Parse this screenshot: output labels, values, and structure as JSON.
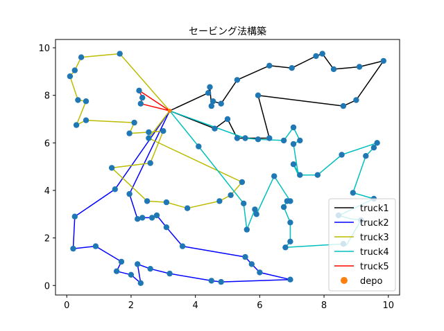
{
  "chart_data": {
    "type": "line",
    "title": "セービング法構築",
    "xlabel": "",
    "ylabel": "",
    "xlim": [
      -0.35,
      10.35
    ],
    "ylim": [
      -0.4,
      10.35
    ],
    "xticks": [
      0,
      2,
      4,
      6,
      8,
      10
    ],
    "yticks": [
      0,
      2,
      4,
      6,
      8,
      10
    ],
    "grid": false,
    "legend_position": "lower-right",
    "depot": [
      3.2,
      7.35
    ],
    "series": [
      {
        "name": "truck1",
        "color": "#000000",
        "points": [
          [
            3.2,
            7.35
          ],
          [
            4.4,
            8.1
          ],
          [
            4.45,
            8.35
          ],
          [
            4.5,
            7.55
          ],
          [
            4.55,
            7.75
          ],
          [
            4.8,
            7.65
          ],
          [
            5.3,
            8.65
          ],
          [
            6.3,
            9.25
          ],
          [
            7.0,
            9.15
          ],
          [
            7.75,
            9.65
          ],
          [
            7.95,
            9.75
          ],
          [
            8.3,
            9.1
          ],
          [
            9.1,
            9.2
          ],
          [
            9.85,
            9.45
          ],
          [
            9.0,
            7.8
          ],
          [
            8.6,
            7.55
          ],
          [
            5.95,
            8.0
          ],
          [
            6.3,
            6.2
          ],
          [
            5.3,
            6.2
          ],
          [
            5.0,
            7.0
          ],
          [
            4.6,
            6.6
          ],
          [
            3.2,
            7.35
          ]
        ]
      },
      {
        "name": "truck2",
        "color": "#0000ff",
        "points": [
          [
            3.2,
            7.35
          ],
          [
            1.5,
            4.05
          ],
          [
            0.25,
            2.9
          ],
          [
            0.2,
            1.55
          ],
          [
            0.9,
            1.65
          ],
          [
            1.7,
            1.0
          ],
          [
            1.55,
            0.6
          ],
          [
            2.0,
            0.45
          ],
          [
            2.3,
            0.1
          ],
          [
            2.2,
            0.9
          ],
          [
            2.6,
            0.7
          ],
          [
            3.2,
            0.5
          ],
          [
            4.5,
            0.2
          ],
          [
            4.8,
            0.15
          ],
          [
            6.95,
            0.25
          ],
          [
            6.0,
            0.55
          ],
          [
            5.75,
            0.9
          ],
          [
            5.55,
            1.2
          ],
          [
            3.6,
            1.65
          ],
          [
            3.1,
            2.45
          ],
          [
            2.8,
            2.95
          ],
          [
            2.65,
            2.85
          ],
          [
            2.35,
            2.85
          ],
          [
            2.2,
            2.8
          ],
          [
            1.95,
            3.85
          ],
          [
            3.2,
            7.35
          ]
        ]
      },
      {
        "name": "truck3",
        "color": "#bbbb00",
        "points": [
          [
            3.2,
            7.35
          ],
          [
            1.65,
            9.75
          ],
          [
            0.45,
            9.6
          ],
          [
            0.25,
            9.05
          ],
          [
            0.1,
            8.8
          ],
          [
            0.35,
            7.8
          ],
          [
            0.6,
            7.75
          ],
          [
            0.3,
            6.75
          ],
          [
            0.6,
            6.95
          ],
          [
            2.1,
            6.85
          ],
          [
            1.95,
            6.4
          ],
          [
            2.55,
            6.45
          ],
          [
            3.0,
            6.5
          ],
          [
            2.6,
            5.15
          ],
          [
            1.4,
            4.95
          ],
          [
            2.5,
            3.55
          ],
          [
            3.1,
            3.5
          ],
          [
            3.75,
            3.25
          ],
          [
            4.75,
            3.55
          ],
          [
            5.1,
            3.8
          ],
          [
            5.45,
            4.35
          ],
          [
            2.55,
            6.2
          ],
          [
            3.2,
            7.35
          ]
        ]
      },
      {
        "name": "truck4",
        "color": "#00bfbf",
        "points": [
          [
            3.2,
            7.35
          ],
          [
            4.1,
            5.85
          ],
          [
            5.5,
            3.45
          ],
          [
            5.6,
            2.35
          ],
          [
            5.85,
            3.2
          ],
          [
            5.9,
            3.0
          ],
          [
            6.45,
            4.6
          ],
          [
            6.95,
            3.55
          ],
          [
            6.85,
            3.55
          ],
          [
            6.75,
            3.3
          ],
          [
            6.95,
            2.65
          ],
          [
            6.95,
            1.85
          ],
          [
            6.8,
            1.6
          ],
          [
            8.6,
            1.75
          ],
          [
            8.7,
            1.7
          ],
          [
            9.15,
            2.75
          ],
          [
            8.85,
            2.8
          ],
          [
            8.45,
            2.95
          ],
          [
            8.4,
            2.9
          ],
          [
            9.55,
            3.65
          ],
          [
            8.9,
            3.9
          ],
          [
            9.3,
            5.45
          ],
          [
            9.55,
            5.8
          ],
          [
            9.65,
            6.0
          ],
          [
            8.55,
            5.5
          ],
          [
            8.55,
            5.5
          ],
          [
            7.8,
            4.65
          ],
          [
            7.25,
            4.65
          ],
          [
            7.05,
            5.1
          ],
          [
            7.2,
            4.65
          ],
          [
            7.05,
            5.95
          ],
          [
            7.25,
            6.1
          ],
          [
            7.05,
            6.65
          ],
          [
            6.75,
            6.1
          ],
          [
            5.95,
            6.15
          ],
          [
            5.55,
            6.2
          ],
          [
            3.2,
            7.35
          ]
        ]
      },
      {
        "name": "truck5",
        "color": "#ff0000",
        "points": [
          [
            3.2,
            7.35
          ],
          [
            2.25,
            8.2
          ],
          [
            2.35,
            7.9
          ],
          [
            2.3,
            7.65
          ],
          [
            3.2,
            7.35
          ]
        ]
      }
    ],
    "scatter": {
      "name": "depo",
      "color": "#ff7f0e",
      "point_color": "#1f77b4",
      "points": [
        [
          4.4,
          8.1
        ],
        [
          4.45,
          8.35
        ],
        [
          4.5,
          7.55
        ],
        [
          4.55,
          7.75
        ],
        [
          4.8,
          7.65
        ],
        [
          5.3,
          8.65
        ],
        [
          6.3,
          9.25
        ],
        [
          7.0,
          9.15
        ],
        [
          7.75,
          9.65
        ],
        [
          7.95,
          9.75
        ],
        [
          8.3,
          9.1
        ],
        [
          9.1,
          9.2
        ],
        [
          9.85,
          9.45
        ],
        [
          9.0,
          7.8
        ],
        [
          8.6,
          7.55
        ],
        [
          5.95,
          8.0
        ],
        [
          6.3,
          6.2
        ],
        [
          5.3,
          6.2
        ],
        [
          5.0,
          7.0
        ],
        [
          4.6,
          6.6
        ],
        [
          1.5,
          4.05
        ],
        [
          0.25,
          2.9
        ],
        [
          0.2,
          1.55
        ],
        [
          0.9,
          1.65
        ],
        [
          1.7,
          1.0
        ],
        [
          1.55,
          0.6
        ],
        [
          2.0,
          0.45
        ],
        [
          2.3,
          0.1
        ],
        [
          2.2,
          0.9
        ],
        [
          2.6,
          0.7
        ],
        [
          3.2,
          0.5
        ],
        [
          4.5,
          0.2
        ],
        [
          4.8,
          0.15
        ],
        [
          6.95,
          0.25
        ],
        [
          6.0,
          0.55
        ],
        [
          5.75,
          0.9
        ],
        [
          5.55,
          1.2
        ],
        [
          3.6,
          1.65
        ],
        [
          3.1,
          2.45
        ],
        [
          2.8,
          2.95
        ],
        [
          2.65,
          2.85
        ],
        [
          2.35,
          2.85
        ],
        [
          2.2,
          2.8
        ],
        [
          1.95,
          3.85
        ],
        [
          1.65,
          9.75
        ],
        [
          0.45,
          9.6
        ],
        [
          0.25,
          9.05
        ],
        [
          0.1,
          8.8
        ],
        [
          0.35,
          7.8
        ],
        [
          0.6,
          7.75
        ],
        [
          0.3,
          6.75
        ],
        [
          0.6,
          6.95
        ],
        [
          2.1,
          6.85
        ],
        [
          1.95,
          6.4
        ],
        [
          2.55,
          6.45
        ],
        [
          3.0,
          6.5
        ],
        [
          2.6,
          5.15
        ],
        [
          1.4,
          4.95
        ],
        [
          2.5,
          3.55
        ],
        [
          3.1,
          3.5
        ],
        [
          3.75,
          3.25
        ],
        [
          4.75,
          3.55
        ],
        [
          5.1,
          3.8
        ],
        [
          5.45,
          4.35
        ],
        [
          2.55,
          6.2
        ],
        [
          4.1,
          5.85
        ],
        [
          5.5,
          3.45
        ],
        [
          5.6,
          2.35
        ],
        [
          5.85,
          3.2
        ],
        [
          5.9,
          3.0
        ],
        [
          6.45,
          4.6
        ],
        [
          6.95,
          3.55
        ],
        [
          6.85,
          3.55
        ],
        [
          6.75,
          3.3
        ],
        [
          6.95,
          2.65
        ],
        [
          6.95,
          1.85
        ],
        [
          6.8,
          1.6
        ],
        [
          8.6,
          1.75
        ],
        [
          9.15,
          2.75
        ],
        [
          8.45,
          2.95
        ],
        [
          9.55,
          3.65
        ],
        [
          8.9,
          3.9
        ],
        [
          9.3,
          5.45
        ],
        [
          9.55,
          5.8
        ],
        [
          9.65,
          6.0
        ],
        [
          8.55,
          5.5
        ],
        [
          7.8,
          4.65
        ],
        [
          7.25,
          4.65
        ],
        [
          7.05,
          5.1
        ],
        [
          7.05,
          5.95
        ],
        [
          7.25,
          6.1
        ],
        [
          7.05,
          6.65
        ],
        [
          6.75,
          6.1
        ],
        [
          5.95,
          6.15
        ],
        [
          5.55,
          6.2
        ],
        [
          2.25,
          8.2
        ],
        [
          2.35,
          7.9
        ],
        [
          2.3,
          7.65
        ]
      ]
    }
  }
}
